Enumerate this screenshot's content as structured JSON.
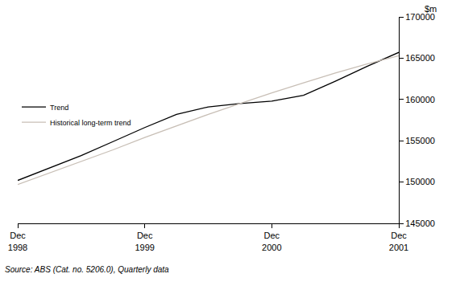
{
  "chart_data": {
    "type": "line",
    "y_label": "$m",
    "source": "Source: ABS (Cat. no. 5206.0), Quarterly data",
    "categories": [
      "Dec 1998",
      null,
      null,
      null,
      "Dec 1999",
      null,
      null,
      null,
      "Dec 2000",
      null,
      null,
      null,
      "Dec 2001"
    ],
    "series": [
      {
        "name": "Trend",
        "color": "#000000",
        "values": [
          150200,
          151700,
          153200,
          154900,
          156600,
          158200,
          159100,
          159500,
          159800,
          160500,
          162200,
          164000,
          165700
        ]
      },
      {
        "name": "Historical long-term trend",
        "color": "#c8bfb6",
        "values": [
          149700,
          151100,
          152500,
          153900,
          155400,
          156800,
          158200,
          159500,
          160800,
          162000,
          163200,
          164300,
          165300
        ]
      }
    ],
    "ylim": [
      145000,
      170000
    ],
    "yticks": [
      145000,
      150000,
      155000,
      160000,
      165000,
      170000
    ],
    "grid": false,
    "legend": "upper left"
  }
}
